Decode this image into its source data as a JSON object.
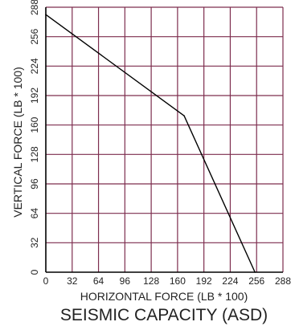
{
  "chart_data": {
    "type": "line",
    "title": "SEISMIC CAPACITY (ASD)",
    "xlabel": "HORIZONTAL FORCE (LB * 100)",
    "ylabel": "VERTICAL FORCE (LB * 100)",
    "xlim": [
      0,
      288
    ],
    "ylim": [
      0,
      288
    ],
    "xticks": [
      0,
      32,
      64,
      96,
      128,
      160,
      192,
      224,
      256,
      288
    ],
    "yticks": [
      0,
      32,
      64,
      96,
      128,
      160,
      192,
      224,
      256,
      288
    ],
    "grid": true,
    "colors": {
      "grid": "#7d2d4e",
      "line": "#000000",
      "axis": "#000000"
    },
    "series": [
      {
        "points": [
          {
            "x": 0,
            "y": 280
          },
          {
            "x": 168,
            "y": 170
          },
          {
            "x": 254,
            "y": 0
          }
        ]
      }
    ]
  }
}
